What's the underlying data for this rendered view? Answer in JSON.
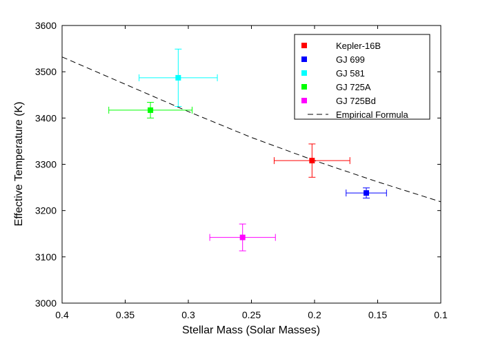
{
  "chart_data": {
    "type": "scatter",
    "xlabel": "Stellar Mass (Solar Masses)",
    "ylabel": "Effective Temperature (K)",
    "xlim": [
      0.4,
      0.1
    ],
    "ylim": [
      3000,
      3600
    ],
    "x_inverted": true,
    "xticks": [
      0.4,
      0.35,
      0.3,
      0.25,
      0.2,
      0.15,
      0.1
    ],
    "xtick_labels": [
      "0.4",
      "0.35",
      "0.3",
      "0.25",
      "0.2",
      "0.15",
      "0.1"
    ],
    "yticks": [
      3000,
      3100,
      3200,
      3300,
      3400,
      3500,
      3600
    ],
    "ytick_labels": [
      "3000",
      "3100",
      "3200",
      "3300",
      "3400",
      "3500",
      "3600"
    ],
    "legend_position": "top-right",
    "series": [
      {
        "name": "Kepler-16B",
        "color": "#ff0000",
        "x": 0.202,
        "y": 3308,
        "xerr": 0.03,
        "yerr": 36
      },
      {
        "name": "GJ 699",
        "color": "#0000ff",
        "x": 0.159,
        "y": 3238,
        "xerr": 0.016,
        "yerr": 11
      },
      {
        "name": "GJ 581",
        "color": "#00ffff",
        "x": 0.308,
        "y": 3487,
        "xerr": 0.031,
        "yerr": 62
      },
      {
        "name": "GJ 725A",
        "color": "#00ff00",
        "x": 0.33,
        "y": 3417,
        "xerr": 0.033,
        "yerr": 17
      },
      {
        "name": "GJ 725Bd",
        "color": "#ff00ff",
        "x": 0.257,
        "y": 3142,
        "xerr": 0.026,
        "yerr": 29
      }
    ],
    "line": {
      "name": "Empirical Formula",
      "style": "dashed",
      "color": "#000000",
      "x": [
        0.4,
        0.35,
        0.3,
        0.25,
        0.2,
        0.15,
        0.1
      ],
      "y": [
        3532,
        3473,
        3414,
        3358,
        3308,
        3262,
        3219
      ]
    }
  }
}
